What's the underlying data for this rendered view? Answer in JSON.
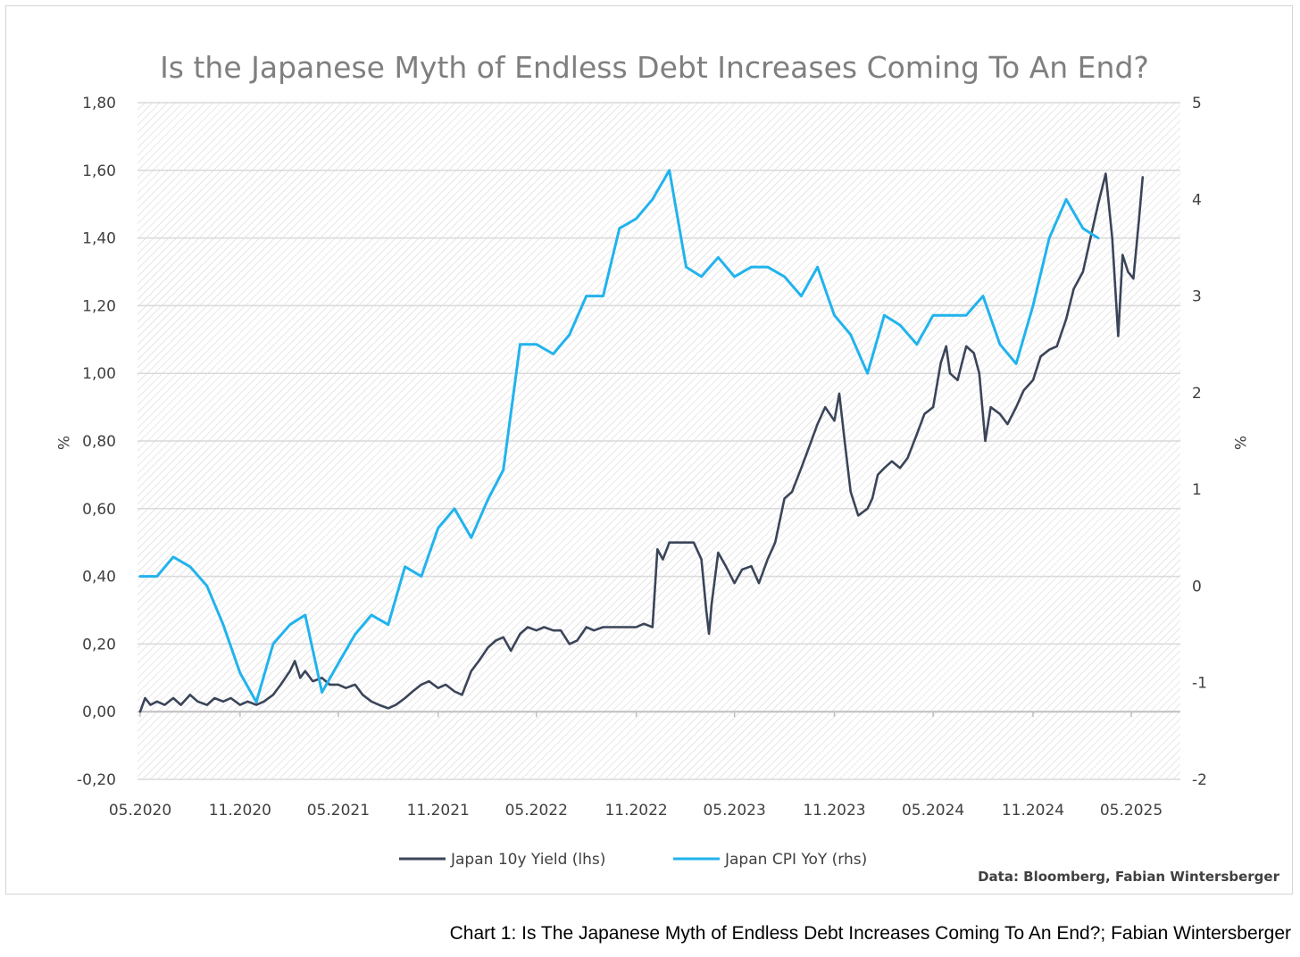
{
  "chart_data": {
    "type": "line",
    "title": "Is the Japanese Myth of Endless Debt Increases Coming To An End?",
    "source": "Data: Bloomberg, Fabian Wintersberger",
    "ylabel_left": "%",
    "ylabel_right": "%",
    "ylim_left": [
      -0.2,
      1.8
    ],
    "ylim_right": [
      -2,
      5
    ],
    "yticks_left": [
      "-0,20",
      "0,00",
      "0,20",
      "0,40",
      "0,60",
      "0,80",
      "1,00",
      "1,20",
      "1,40",
      "1,60",
      "1,80"
    ],
    "yticks_right": [
      "-2",
      "-1",
      "0",
      "1",
      "2",
      "3",
      "4",
      "5"
    ],
    "xticks": [
      "05.2020",
      "11.2020",
      "05.2021",
      "11.2021",
      "05.2022",
      "11.2022",
      "05.2023",
      "11.2023",
      "05.2024",
      "11.2024",
      "05.2025"
    ],
    "grid": true,
    "legend_position": "bottom",
    "series": [
      {
        "name": "Japan 10y Yield (lhs)",
        "axis": "left",
        "color": "#3b4559",
        "x": [
          "2020-05-01",
          "2020-05-10",
          "2020-05-20",
          "2020-06-01",
          "2020-06-15",
          "2020-07-01",
          "2020-07-15",
          "2020-08-01",
          "2020-08-15",
          "2020-09-01",
          "2020-09-15",
          "2020-10-01",
          "2020-10-15",
          "2020-11-01",
          "2020-11-15",
          "2020-12-01",
          "2020-12-15",
          "2021-01-01",
          "2021-01-15",
          "2021-02-01",
          "2021-02-10",
          "2021-02-20",
          "2021-03-01",
          "2021-03-15",
          "2021-04-01",
          "2021-04-15",
          "2021-05-01",
          "2021-05-15",
          "2021-06-01",
          "2021-06-15",
          "2021-07-01",
          "2021-07-15",
          "2021-08-01",
          "2021-08-15",
          "2021-09-01",
          "2021-09-15",
          "2021-10-01",
          "2021-10-15",
          "2021-11-01",
          "2021-11-15",
          "2021-12-01",
          "2021-12-15",
          "2022-01-01",
          "2022-01-15",
          "2022-02-01",
          "2022-02-15",
          "2022-03-01",
          "2022-03-15",
          "2022-04-01",
          "2022-04-15",
          "2022-05-01",
          "2022-05-15",
          "2022-06-01",
          "2022-06-15",
          "2022-07-01",
          "2022-07-15",
          "2022-08-01",
          "2022-08-15",
          "2022-09-01",
          "2022-09-15",
          "2022-10-01",
          "2022-10-15",
          "2022-11-01",
          "2022-11-15",
          "2022-12-01",
          "2022-12-10",
          "2022-12-20",
          "2023-01-01",
          "2023-01-15",
          "2023-02-01",
          "2023-02-15",
          "2023-03-01",
          "2023-03-10",
          "2023-03-15",
          "2023-03-20",
          "2023-04-01",
          "2023-04-15",
          "2023-05-01",
          "2023-05-15",
          "2023-06-01",
          "2023-06-15",
          "2023-07-01",
          "2023-07-15",
          "2023-08-01",
          "2023-08-15",
          "2023-09-01",
          "2023-09-15",
          "2023-10-01",
          "2023-10-15",
          "2023-11-01",
          "2023-11-10",
          "2023-11-20",
          "2023-12-01",
          "2023-12-15",
          "2024-01-01",
          "2024-01-10",
          "2024-01-20",
          "2024-02-01",
          "2024-02-15",
          "2024-03-01",
          "2024-03-15",
          "2024-04-01",
          "2024-04-15",
          "2024-05-01",
          "2024-05-15",
          "2024-05-25",
          "2024-06-01",
          "2024-06-15",
          "2024-07-01",
          "2024-07-15",
          "2024-07-25",
          "2024-08-05",
          "2024-08-15",
          "2024-09-01",
          "2024-09-15",
          "2024-10-01",
          "2024-10-15",
          "2024-11-01",
          "2024-11-15",
          "2024-12-01",
          "2024-12-15",
          "2025-01-01",
          "2025-01-15",
          "2025-02-01",
          "2025-02-15",
          "2025-03-01",
          "2025-03-15",
          "2025-03-27",
          "2025-04-07",
          "2025-04-15",
          "2025-04-25",
          "2025-05-05",
          "2025-05-15",
          "2025-05-22"
        ],
        "values": [
          0.0,
          0.04,
          0.02,
          0.03,
          0.02,
          0.04,
          0.02,
          0.05,
          0.03,
          0.02,
          0.04,
          0.03,
          0.04,
          0.02,
          0.03,
          0.02,
          0.03,
          0.05,
          0.08,
          0.12,
          0.15,
          0.1,
          0.12,
          0.09,
          0.1,
          0.08,
          0.08,
          0.07,
          0.08,
          0.05,
          0.03,
          0.02,
          0.01,
          0.02,
          0.04,
          0.06,
          0.08,
          0.09,
          0.07,
          0.08,
          0.06,
          0.05,
          0.12,
          0.15,
          0.19,
          0.21,
          0.22,
          0.18,
          0.23,
          0.25,
          0.24,
          0.25,
          0.24,
          0.24,
          0.2,
          0.21,
          0.25,
          0.24,
          0.25,
          0.25,
          0.25,
          0.25,
          0.25,
          0.26,
          0.25,
          0.48,
          0.45,
          0.5,
          0.5,
          0.5,
          0.5,
          0.45,
          0.3,
          0.23,
          0.32,
          0.47,
          0.43,
          0.38,
          0.42,
          0.43,
          0.38,
          0.45,
          0.5,
          0.63,
          0.65,
          0.72,
          0.78,
          0.85,
          0.9,
          0.86,
          0.94,
          0.8,
          0.65,
          0.58,
          0.6,
          0.63,
          0.7,
          0.72,
          0.74,
          0.72,
          0.75,
          0.82,
          0.88,
          0.9,
          1.03,
          1.08,
          1.0,
          0.98,
          1.08,
          1.06,
          1.0,
          0.8,
          0.9,
          0.88,
          0.85,
          0.9,
          0.95,
          0.98,
          1.05,
          1.07,
          1.08,
          1.16,
          1.25,
          1.3,
          1.4,
          1.5,
          1.59,
          1.4,
          1.11,
          1.35,
          1.3,
          1.28,
          1.45,
          1.58
        ]
      },
      {
        "name": "Japan CPI YoY (rhs)",
        "axis": "right",
        "color": "#21b3ed",
        "x": [
          "2020-05-01",
          "2020-06-01",
          "2020-07-01",
          "2020-08-01",
          "2020-09-01",
          "2020-10-01",
          "2020-11-01",
          "2020-12-01",
          "2021-01-01",
          "2021-02-01",
          "2021-03-01",
          "2021-04-01",
          "2021-05-01",
          "2021-06-01",
          "2021-07-01",
          "2021-08-01",
          "2021-09-01",
          "2021-10-01",
          "2021-11-01",
          "2021-12-01",
          "2022-01-01",
          "2022-02-01",
          "2022-03-01",
          "2022-04-01",
          "2022-05-01",
          "2022-06-01",
          "2022-07-01",
          "2022-08-01",
          "2022-09-01",
          "2022-10-01",
          "2022-11-01",
          "2022-12-01",
          "2023-01-01",
          "2023-02-01",
          "2023-03-01",
          "2023-04-01",
          "2023-05-01",
          "2023-06-01",
          "2023-07-01",
          "2023-08-01",
          "2023-09-01",
          "2023-10-01",
          "2023-11-01",
          "2023-12-01",
          "2024-01-01",
          "2024-02-01",
          "2024-03-01",
          "2024-04-01",
          "2024-05-01",
          "2024-06-01",
          "2024-07-01",
          "2024-08-01",
          "2024-09-01",
          "2024-10-01",
          "2024-11-01",
          "2024-12-01",
          "2025-01-01",
          "2025-02-01",
          "2025-03-01"
        ],
        "values": [
          0.1,
          0.1,
          0.3,
          0.2,
          0.0,
          -0.4,
          -0.9,
          -1.2,
          -0.6,
          -0.4,
          -0.3,
          -1.1,
          -0.8,
          -0.5,
          -0.3,
          -0.4,
          0.2,
          0.1,
          0.6,
          0.8,
          0.5,
          0.9,
          1.2,
          2.5,
          2.5,
          2.4,
          2.6,
          3.0,
          3.0,
          3.7,
          3.8,
          4.0,
          4.3,
          3.3,
          3.2,
          3.4,
          3.2,
          3.3,
          3.3,
          3.2,
          3.0,
          3.3,
          2.8,
          2.6,
          2.2,
          2.8,
          2.7,
          2.5,
          2.8,
          2.8,
          2.8,
          3.0,
          2.5,
          2.3,
          2.9,
          3.6,
          4.0,
          3.7,
          3.6
        ]
      }
    ]
  },
  "caption": "Chart 1: Is The Japanese Myth of Endless Debt Increases Coming To An End?; Fabian Wintersberger",
  "colors": {
    "yield": "#3b4559",
    "cpi": "#21b3ed",
    "grid": "#d9d9d9",
    "text": "#404040",
    "title": "#7f7f7f"
  }
}
